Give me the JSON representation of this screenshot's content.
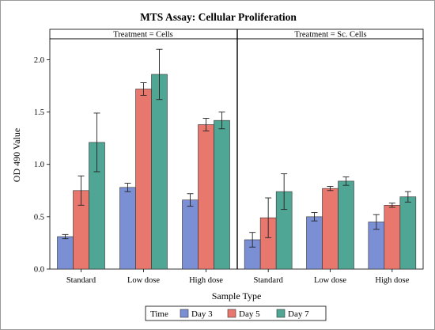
{
  "chart_data": {
    "type": "bar",
    "title": "MTS Assay: Cellular Proliferation",
    "xlabel": "Sample Type",
    "ylabel": "OD 490 Value",
    "ylim": [
      0,
      2.2
    ],
    "yticks": [
      "0.0",
      "0.5",
      "1.0",
      "1.5",
      "2.0"
    ],
    "categories": [
      "Standard",
      "Low dose",
      "High dose"
    ],
    "legend": {
      "title": "Time",
      "position": "bottom"
    },
    "grid": false,
    "series_colors": [
      "#7b8fd4",
      "#e8776d",
      "#4fa694"
    ],
    "panels": [
      {
        "label": "Treatment = Cells",
        "series": [
          {
            "name": "Day 3",
            "values": [
              0.31,
              0.78,
              0.66
            ],
            "err": [
              0.02,
              0.04,
              0.06
            ]
          },
          {
            "name": "Day 5",
            "values": [
              0.75,
              1.72,
              1.38
            ],
            "err": [
              0.14,
              0.06,
              0.06
            ]
          },
          {
            "name": "Day 7",
            "values": [
              1.21,
              1.86,
              1.42
            ],
            "err": [
              0.28,
              0.24,
              0.08
            ]
          }
        ]
      },
      {
        "label": "Treatment = Sc. Cells",
        "series": [
          {
            "name": "Day 3",
            "values": [
              0.28,
              0.5,
              0.45
            ],
            "err": [
              0.07,
              0.04,
              0.07
            ]
          },
          {
            "name": "Day 5",
            "values": [
              0.49,
              0.77,
              0.61
            ],
            "err": [
              0.19,
              0.02,
              0.02
            ]
          },
          {
            "name": "Day 7",
            "values": [
              0.74,
              0.84,
              0.69
            ],
            "err": [
              0.17,
              0.04,
              0.05
            ]
          }
        ]
      }
    ]
  }
}
